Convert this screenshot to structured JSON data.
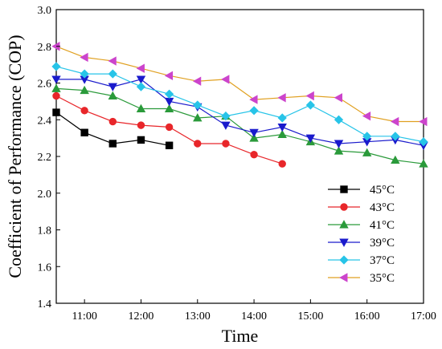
{
  "chart_data": {
    "type": "line",
    "xlabel": "Time",
    "ylabel": "Coefficient of Performance (COP)",
    "xlim": [
      "10:30",
      "17:00"
    ],
    "ylim": [
      1.4,
      3.0
    ],
    "x_ticks": [
      "11:00",
      "12:00",
      "13:00",
      "14:00",
      "15:00",
      "16:00",
      "17:00"
    ],
    "y_ticks": [
      "1.4",
      "1.6",
      "1.8",
      "2.0",
      "2.2",
      "2.4",
      "2.6",
      "2.8",
      "3.0"
    ],
    "grid": false,
    "legend_position": "bottom-right",
    "series": [
      {
        "name": "45°C",
        "color": "#000000",
        "marker": "square",
        "points": [
          [
            "10:30",
            2.44
          ],
          [
            "11:00",
            2.33
          ],
          [
            "11:30",
            2.27
          ],
          [
            "12:00",
            2.29
          ],
          [
            "12:30",
            2.26
          ]
        ]
      },
      {
        "name": "43°C",
        "color": "#e8262a",
        "marker": "circle",
        "points": [
          [
            "10:30",
            2.53
          ],
          [
            "11:00",
            2.45
          ],
          [
            "11:30",
            2.39
          ],
          [
            "12:00",
            2.37
          ],
          [
            "12:30",
            2.36
          ],
          [
            "13:00",
            2.27
          ],
          [
            "13:30",
            2.27
          ],
          [
            "14:00",
            2.21
          ],
          [
            "14:30",
            2.16
          ]
        ]
      },
      {
        "name": "41°C",
        "color": "#2a9a3a",
        "marker": "triangle-up",
        "points": [
          [
            "10:30",
            2.57
          ],
          [
            "11:00",
            2.56
          ],
          [
            "11:30",
            2.53
          ],
          [
            "12:00",
            2.46
          ],
          [
            "12:30",
            2.46
          ],
          [
            "13:00",
            2.41
          ],
          [
            "13:30",
            2.42
          ],
          [
            "14:00",
            2.3
          ],
          [
            "14:30",
            2.32
          ],
          [
            "15:00",
            2.28
          ],
          [
            "15:30",
            2.23
          ],
          [
            "16:00",
            2.22
          ],
          [
            "16:30",
            2.18
          ],
          [
            "17:00",
            2.16
          ]
        ]
      },
      {
        "name": "39°C",
        "color": "#1a1acc",
        "marker": "triangle-down",
        "points": [
          [
            "10:30",
            2.62
          ],
          [
            "11:00",
            2.62
          ],
          [
            "11:30",
            2.58
          ],
          [
            "12:00",
            2.62
          ],
          [
            "12:30",
            2.5
          ],
          [
            "13:00",
            2.47
          ],
          [
            "13:30",
            2.37
          ],
          [
            "14:00",
            2.33
          ],
          [
            "14:30",
            2.36
          ],
          [
            "15:00",
            2.3
          ],
          [
            "15:30",
            2.27
          ],
          [
            "16:00",
            2.28
          ],
          [
            "16:30",
            2.29
          ],
          [
            "17:00",
            2.26
          ]
        ]
      },
      {
        "name": "37°C",
        "color": "#27c4e8",
        "marker": "diamond",
        "points": [
          [
            "10:30",
            2.69
          ],
          [
            "11:00",
            2.65
          ],
          [
            "11:30",
            2.65
          ],
          [
            "12:00",
            2.58
          ],
          [
            "12:30",
            2.54
          ],
          [
            "13:00",
            2.48
          ],
          [
            "13:30",
            2.42
          ],
          [
            "14:00",
            2.45
          ],
          [
            "14:30",
            2.41
          ],
          [
            "15:00",
            2.48
          ],
          [
            "15:30",
            2.4
          ],
          [
            "16:00",
            2.31
          ],
          [
            "16:30",
            2.31
          ],
          [
            "17:00",
            2.28
          ]
        ]
      },
      {
        "name": "35°C",
        "color": "#cc44cc",
        "line_color": "#e0a020",
        "marker": "triangle-left",
        "points": [
          [
            "10:30",
            2.8
          ],
          [
            "11:00",
            2.74
          ],
          [
            "11:30",
            2.72
          ],
          [
            "12:00",
            2.68
          ],
          [
            "12:30",
            2.64
          ],
          [
            "13:00",
            2.61
          ],
          [
            "13:30",
            2.62
          ],
          [
            "14:00",
            2.51
          ],
          [
            "14:30",
            2.52
          ],
          [
            "15:00",
            2.53
          ],
          [
            "15:30",
            2.52
          ],
          [
            "16:00",
            2.42
          ],
          [
            "16:30",
            2.39
          ],
          [
            "17:00",
            2.39
          ]
        ]
      }
    ]
  }
}
